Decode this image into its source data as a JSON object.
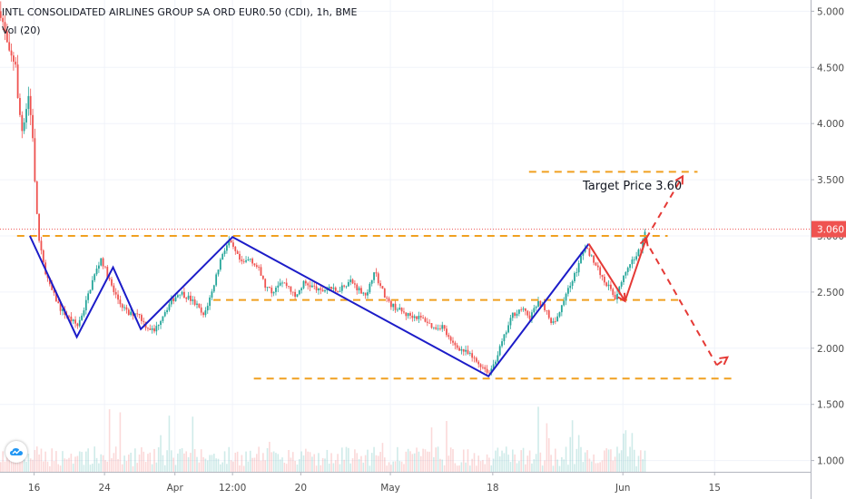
{
  "header": {
    "symbol": "INTL CONSOLIDATED AIRLINES GROUP SA ORD EUR0.50 (CDI), 1h, BME",
    "volume_label": "Vol (20)"
  },
  "logo_icon": "tradingview-cloud-icon",
  "colors": {
    "up": "#26a69a",
    "down": "#ef5350",
    "pattern_line": "#1c1cc8",
    "level_line": "#f0a020",
    "projection": "#e53935",
    "price_badge": "#ef5350"
  },
  "chart_data": {
    "type": "candlestick",
    "title": "INTL CONSOLIDATED AIRLINES GROUP SA ORD EUR0.50 (CDI), 1h, BME",
    "y_axis": {
      "ticks": [
        "5.000",
        "4.500",
        "4.000",
        "3.500",
        "3.000",
        "2.500",
        "2.000",
        "1.500",
        "1.000"
      ],
      "tick_values": [
        5.0,
        4.5,
        4.0,
        3.5,
        3.0,
        2.5,
        2.0,
        1.5,
        1.0
      ],
      "range": [
        0.9,
        5.1
      ]
    },
    "x_axis": {
      "ticks": [
        "16",
        "24",
        "Apr",
        "12:00",
        "20",
        "May",
        "18",
        "Jun",
        "15"
      ],
      "tick_index": [
        16,
        49,
        82,
        109,
        141,
        183,
        231,
        292,
        335
      ],
      "range": [
        0,
        380
      ]
    },
    "last_price": "3.060",
    "last_price_value": 3.06,
    "volume_series": "Vol (20)",
    "price_path": [
      [
        0,
        5.0
      ],
      [
        4,
        4.6
      ],
      [
        7,
        4.55
      ],
      [
        8,
        4.2
      ],
      [
        10,
        3.95
      ],
      [
        13,
        4.25
      ],
      [
        15,
        3.9
      ],
      [
        16,
        3.45
      ],
      [
        18,
        2.95
      ],
      [
        20,
        2.75
      ],
      [
        23,
        2.55
      ],
      [
        28,
        2.35
      ],
      [
        33,
        2.25
      ],
      [
        36,
        2.2
      ],
      [
        39,
        2.35
      ],
      [
        43,
        2.6
      ],
      [
        47,
        2.8
      ],
      [
        50,
        2.65
      ],
      [
        53,
        2.5
      ],
      [
        56,
        2.4
      ],
      [
        60,
        2.3
      ],
      [
        64,
        2.32
      ],
      [
        68,
        2.2
      ],
      [
        72,
        2.15
      ],
      [
        76,
        2.3
      ],
      [
        80,
        2.42
      ],
      [
        84,
        2.5
      ],
      [
        88,
        2.45
      ],
      [
        92,
        2.38
      ],
      [
        95,
        2.28
      ],
      [
        99,
        2.5
      ],
      [
        101,
        2.65
      ],
      [
        104,
        2.85
      ],
      [
        107,
        2.95
      ],
      [
        110,
        2.85
      ],
      [
        113,
        2.75
      ],
      [
        117,
        2.8
      ],
      [
        121,
        2.7
      ],
      [
        124,
        2.55
      ],
      [
        127,
        2.5
      ],
      [
        131,
        2.6
      ],
      [
        135,
        2.55
      ],
      [
        138,
        2.45
      ],
      [
        142,
        2.58
      ],
      [
        146,
        2.55
      ],
      [
        150,
        2.5
      ],
      [
        154,
        2.55
      ],
      [
        157,
        2.5
      ],
      [
        160,
        2.55
      ],
      [
        164,
        2.6
      ],
      [
        168,
        2.52
      ],
      [
        172,
        2.48
      ],
      [
        175,
        2.7
      ],
      [
        178,
        2.55
      ],
      [
        182,
        2.4
      ],
      [
        186,
        2.35
      ],
      [
        190,
        2.3
      ],
      [
        195,
        2.28
      ],
      [
        199,
        2.25
      ],
      [
        203,
        2.18
      ],
      [
        207,
        2.2
      ],
      [
        211,
        2.05
      ],
      [
        215,
        2.0
      ],
      [
        219,
        1.95
      ],
      [
        223,
        1.88
      ],
      [
        227,
        1.82
      ],
      [
        229,
        1.78
      ],
      [
        232,
        1.9
      ],
      [
        236,
        2.1
      ],
      [
        240,
        2.3
      ],
      [
        244,
        2.35
      ],
      [
        248,
        2.28
      ],
      [
        252,
        2.4
      ],
      [
        256,
        2.35
      ],
      [
        258,
        2.2
      ],
      [
        262,
        2.3
      ],
      [
        265,
        2.5
      ],
      [
        268,
        2.6
      ],
      [
        271,
        2.75
      ],
      [
        274,
        2.9
      ],
      [
        277,
        2.82
      ],
      [
        280,
        2.7
      ],
      [
        283,
        2.6
      ],
      [
        286,
        2.52
      ],
      [
        288,
        2.45
      ],
      [
        291,
        2.6
      ],
      [
        294,
        2.7
      ],
      [
        297,
        2.8
      ],
      [
        300,
        2.9
      ],
      [
        302,
        3.05
      ]
    ],
    "annotations": {
      "text": "Target Price 3.60",
      "pattern_line": [
        [
          14,
          3.0
        ],
        [
          36,
          2.1
        ],
        [
          53,
          2.72
        ],
        [
          66,
          2.17
        ],
        [
          109,
          2.99
        ],
        [
          229,
          1.75
        ],
        [
          276,
          2.93
        ],
        [
          293,
          2.42
        ],
        [
          303,
          2.98
        ]
      ],
      "projection_solid": [
        [
          276,
          2.93
        ],
        [
          293,
          2.42
        ],
        [
          303,
          2.98
        ]
      ],
      "projection_dashed": [
        [
          303,
          2.98
        ],
        [
          320,
          3.53
        ],
        [
          302,
          2.98
        ],
        [
          336,
          1.85
        ],
        [
          341,
          1.92
        ]
      ],
      "levels": [
        {
          "y": 3.0,
          "x": [
            8,
            313
          ]
        },
        {
          "y": 2.43,
          "x": [
            100,
            318
          ]
        },
        {
          "y": 1.73,
          "x": [
            119,
            345
          ]
        },
        {
          "y": 3.57,
          "x": [
            248,
            327
          ]
        }
      ]
    }
  }
}
